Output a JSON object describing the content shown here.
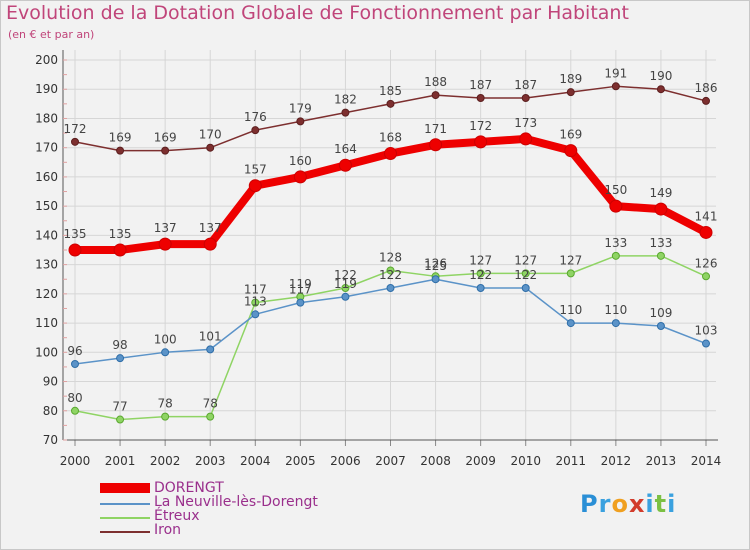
{
  "header": {
    "title": "Evolution de la Dotation Globale de Fonctionnement par Habitant",
    "subtitle": "(en € et par an)"
  },
  "chart_data": {
    "type": "line",
    "x": [
      "2000",
      "2001",
      "2002",
      "2003",
      "2004",
      "2005",
      "2006",
      "2007",
      "2008",
      "2009",
      "2010",
      "2011",
      "2012",
      "2013",
      "2014"
    ],
    "ylim": [
      70,
      200
    ],
    "yticks": [
      70,
      80,
      90,
      100,
      110,
      120,
      130,
      140,
      150,
      160,
      170,
      180,
      190,
      200
    ],
    "grid": true,
    "series": [
      {
        "name": "DORENGT",
        "color": "#ee0000",
        "values": [
          135,
          135,
          137,
          137,
          157,
          160,
          164,
          168,
          171,
          172,
          173,
          169,
          150,
          149,
          141
        ]
      },
      {
        "name": "La Neuville-lès-Dorengt",
        "color": "#5b93c8",
        "values": [
          96,
          98,
          100,
          101,
          113,
          117,
          119,
          122,
          125,
          122,
          122,
          110,
          110,
          109,
          103
        ]
      },
      {
        "name": "Étreux",
        "color": "#8fd464",
        "values": [
          80,
          77,
          78,
          78,
          117,
          119,
          122,
          128,
          126,
          127,
          127,
          127,
          133,
          133,
          126
        ]
      },
      {
        "name": "Iron",
        "color": "#7d2f2f",
        "values": [
          172,
          169,
          169,
          170,
          176,
          179,
          182,
          185,
          188,
          187,
          187,
          189,
          191,
          190,
          186
        ]
      }
    ],
    "data_labels": [
      {
        "series": "DORENGT",
        "labels": [
          "135",
          "135",
          "137",
          "137",
          "157",
          "160",
          "164",
          "168",
          "171",
          "172",
          "173",
          "169",
          "150",
          "149",
          "141"
        ]
      },
      {
        "series": "La Neuville-lès-Dorengt",
        "labels": [
          "96",
          "98",
          "100",
          "101",
          "113",
          "117",
          "119",
          "122",
          "125",
          "122",
          "122",
          "110",
          "110",
          "109",
          "103"
        ]
      },
      {
        "series": "Étreux",
        "labels": [
          "80",
          "77",
          "78",
          "78",
          "117",
          "119",
          "122",
          "128",
          "126",
          "127",
          "127",
          "127",
          "133",
          "133",
          "126"
        ]
      },
      {
        "series": "Iron",
        "labels": [
          "172",
          "169",
          "169",
          "170",
          "176",
          "179",
          "182",
          "185",
          "188",
          "187",
          "187",
          "189",
          "191",
          "190",
          "186"
        ]
      }
    ],
    "legend": {
      "position": "bottom-left",
      "items": [
        {
          "label": "DORENGT",
          "color": "#ee0000"
        },
        {
          "label": "La Neuville-lès-Dorengt",
          "color": "#5b93c8"
        },
        {
          "label": "Étreux",
          "color": "#8fd464"
        },
        {
          "label": "Iron",
          "color": "#7d2f2f"
        }
      ]
    }
  },
  "logo": {
    "letters": [
      "P",
      "r",
      "o",
      "x",
      "i",
      "t",
      "i"
    ],
    "colors": [
      "#2a8fd6",
      "#3aa1df",
      "#f0a020",
      "#d23c2c",
      "#3aa1df",
      "#7bc043",
      "#3aa1df"
    ]
  }
}
